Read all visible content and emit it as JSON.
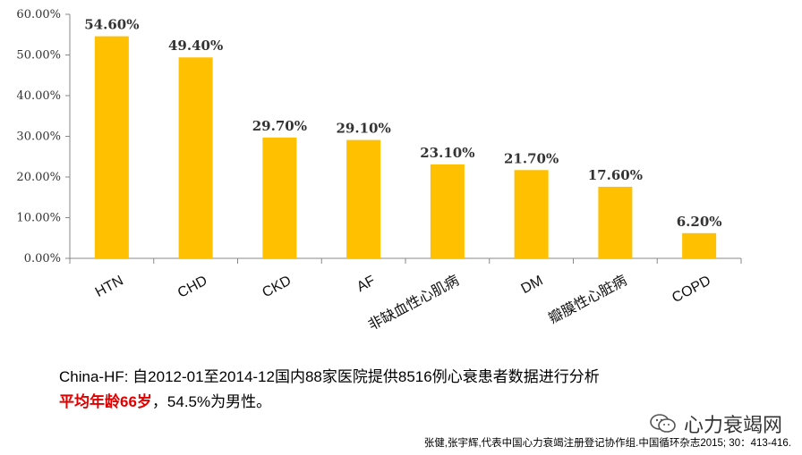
{
  "chart_data": {
    "type": "bar",
    "categories": [
      "HTN",
      "CHD",
      "CKD",
      "AF",
      "非缺血性心肌病",
      "DM",
      "瓣膜性心脏病",
      "COPD"
    ],
    "values": [
      54.6,
      49.4,
      29.7,
      29.1,
      23.1,
      21.7,
      17.6,
      6.2
    ],
    "data_labels": [
      "54.60%",
      "49.40%",
      "29.70%",
      "29.10%",
      "23.10%",
      "21.70%",
      "17.60%",
      "6.20%"
    ],
    "yticks": [
      "0.00%",
      "10.00%",
      "20.00%",
      "30.00%",
      "40.00%",
      "50.00%",
      "60.00%"
    ],
    "ylim": [
      0,
      60
    ],
    "grid": false,
    "bar_color": "#ffc000",
    "axis_color": "#888888"
  },
  "caption": {
    "line1": "China-HF: 自2012-01至2014-12国内88家医院提供8516例心衰患者数据进行分析",
    "line2_red": "平均年龄66岁",
    "line2_rest": "，54.5%为男性。"
  },
  "brand": {
    "text": "心力衰竭网",
    "icon": "wechat-icon"
  },
  "citation": "张健,张宇辉,代表中国心力衰竭注册登记协作组.中国循环杂志2015; 30：413-416."
}
